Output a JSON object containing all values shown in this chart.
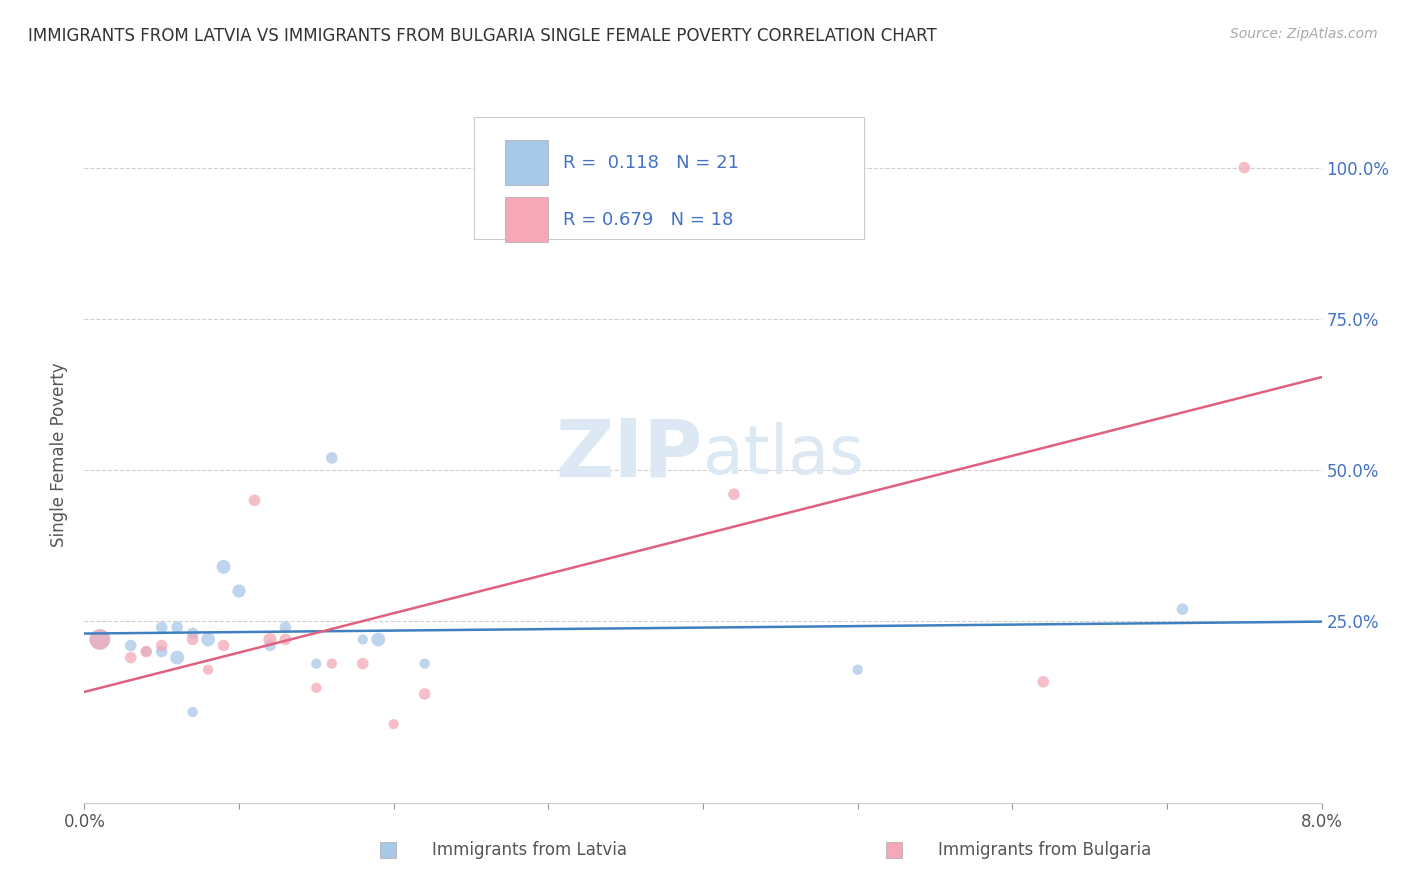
{
  "title": "IMMIGRANTS FROM LATVIA VS IMMIGRANTS FROM BULGARIA SINGLE FEMALE POVERTY CORRELATION CHART",
  "source": "Source: ZipAtlas.com",
  "ylabel": "Single Female Poverty",
  "ytick_labels": [
    "100.0%",
    "75.0%",
    "50.0%",
    "25.0%"
  ],
  "ytick_values": [
    1.0,
    0.75,
    0.5,
    0.25
  ],
  "xlim": [
    0.0,
    0.08
  ],
  "ylim": [
    -0.05,
    1.1
  ],
  "legend_label1": "Immigrants from Latvia",
  "legend_label2": "Immigrants from Bulgaria",
  "R1": 0.118,
  "N1": 21,
  "R2": 0.679,
  "N2": 18,
  "color_latvia": "#a8c8e8",
  "color_bulgaria": "#f4a8b8",
  "trendline_color_latvia": "#4080c0",
  "trendline_color_bulgaria": "#e06080",
  "legend_text_color": "#4472c4",
  "watermark_zip": "ZIP",
  "watermark_atlas": "atlas",
  "watermark_color": "#dce8f4",
  "right_axis_color": "#4472c4",
  "latvia_x": [
    0.001,
    0.003,
    0.004,
    0.005,
    0.005,
    0.006,
    0.006,
    0.007,
    0.007,
    0.008,
    0.009,
    0.01,
    0.012,
    0.013,
    0.015,
    0.016,
    0.018,
    0.019,
    0.022,
    0.05,
    0.071
  ],
  "latvia_y": [
    0.22,
    0.21,
    0.2,
    0.24,
    0.2,
    0.19,
    0.24,
    0.23,
    0.1,
    0.22,
    0.34,
    0.3,
    0.21,
    0.24,
    0.18,
    0.52,
    0.22,
    0.22,
    0.18,
    0.17,
    0.27
  ],
  "latvia_size": [
    220,
    70,
    55,
    70,
    70,
    100,
    70,
    70,
    55,
    100,
    100,
    90,
    70,
    70,
    55,
    70,
    55,
    100,
    55,
    55,
    70
  ],
  "bulgaria_x": [
    0.001,
    0.003,
    0.004,
    0.005,
    0.007,
    0.008,
    0.009,
    0.011,
    0.012,
    0.013,
    0.015,
    0.016,
    0.018,
    0.02,
    0.022,
    0.042,
    0.062,
    0.075
  ],
  "bulgaria_y": [
    0.22,
    0.19,
    0.2,
    0.21,
    0.22,
    0.17,
    0.21,
    0.45,
    0.22,
    0.22,
    0.14,
    0.18,
    0.18,
    0.08,
    0.13,
    0.46,
    0.15,
    1.0
  ],
  "bulgaria_size": [
    220,
    70,
    70,
    70,
    70,
    55,
    70,
    70,
    90,
    70,
    55,
    55,
    70,
    55,
    70,
    70,
    70,
    70
  ]
}
